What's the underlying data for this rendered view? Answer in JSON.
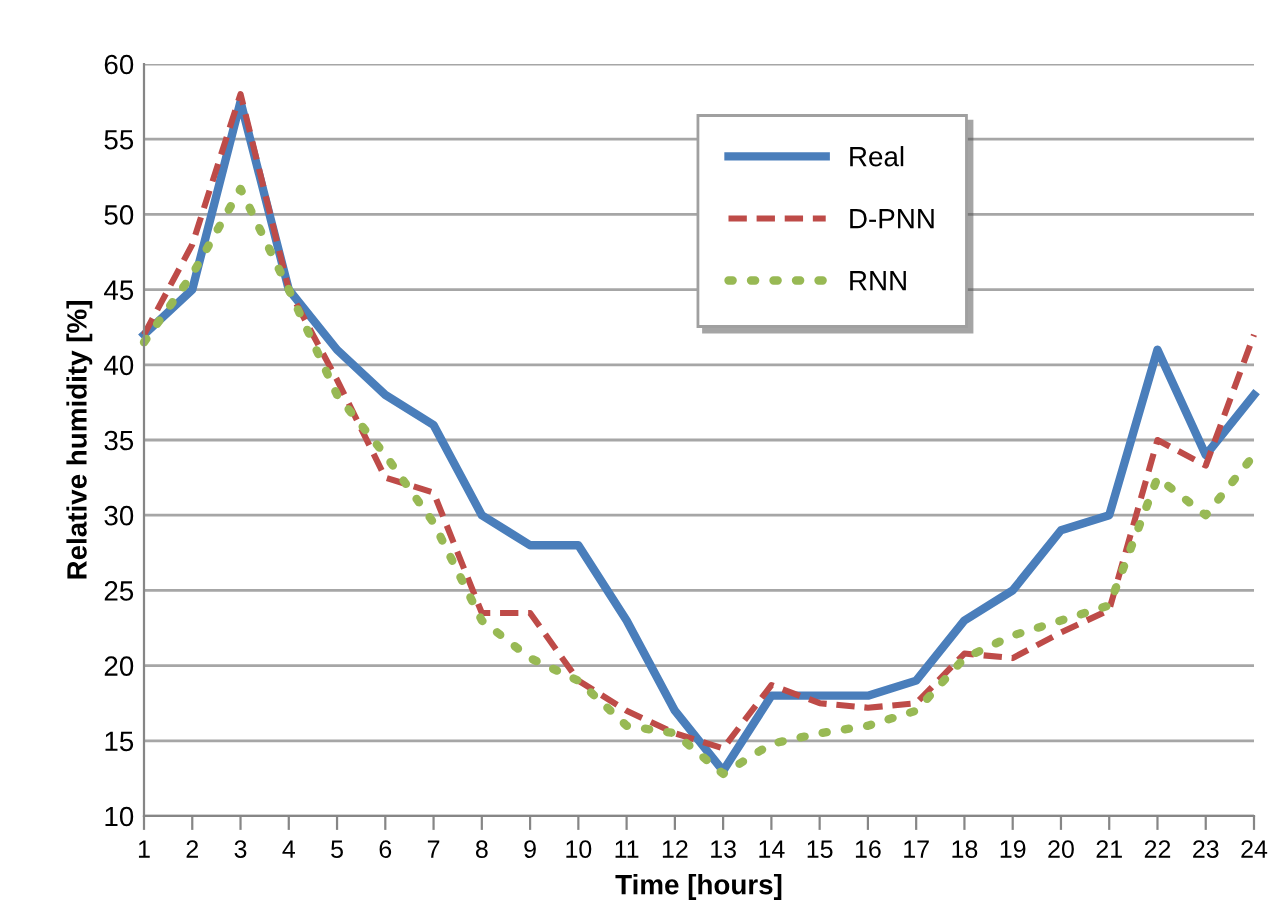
{
  "chart_data": {
    "type": "line",
    "xlabel": "Time [hours]",
    "ylabel": "Relative humidity [%]",
    "x": [
      1,
      2,
      3,
      4,
      5,
      6,
      7,
      8,
      9,
      10,
      11,
      12,
      13,
      14,
      15,
      16,
      17,
      18,
      19,
      20,
      21,
      22,
      23,
      24
    ],
    "xlim": [
      1,
      24
    ],
    "xticks": [
      1,
      2,
      3,
      4,
      5,
      6,
      7,
      8,
      9,
      10,
      11,
      12,
      13,
      14,
      15,
      16,
      17,
      18,
      19,
      20,
      21,
      22,
      23,
      24
    ],
    "ylim": [
      10,
      60
    ],
    "yticks": [
      10,
      15,
      20,
      25,
      30,
      35,
      40,
      45,
      50,
      55,
      60
    ],
    "grid": "y",
    "legend": "top",
    "marker": "none",
    "series": [
      {
        "name": "Real",
        "color": "#4a7ebb",
        "line_style": "solid",
        "values": [
          42,
          45,
          57.5,
          45,
          41,
          38,
          36,
          30,
          28,
          28,
          23,
          17,
          13,
          18,
          18,
          18,
          19,
          23,
          25,
          29,
          30,
          41,
          34,
          38
        ]
      },
      {
        "name": "D-PNN",
        "color": "#be4b48",
        "line_style": "dashed",
        "values": [
          42,
          48,
          58,
          45,
          39,
          32.5,
          31.5,
          23.5,
          23.5,
          19,
          17,
          15.5,
          14.5,
          18.7,
          17.5,
          17.2,
          17.5,
          20.8,
          20.5,
          22.2,
          23.7,
          35,
          33.3,
          42
        ]
      },
      {
        "name": "RNN",
        "color": "#98b954",
        "line_style": "dotted",
        "values": [
          41.5,
          46,
          51.7,
          45,
          38,
          34,
          29.5,
          23,
          20.5,
          19,
          16,
          15.5,
          12.8,
          14.8,
          15.5,
          16,
          17,
          20.5,
          22,
          23,
          24,
          32.5,
          30,
          34
        ]
      }
    ]
  }
}
